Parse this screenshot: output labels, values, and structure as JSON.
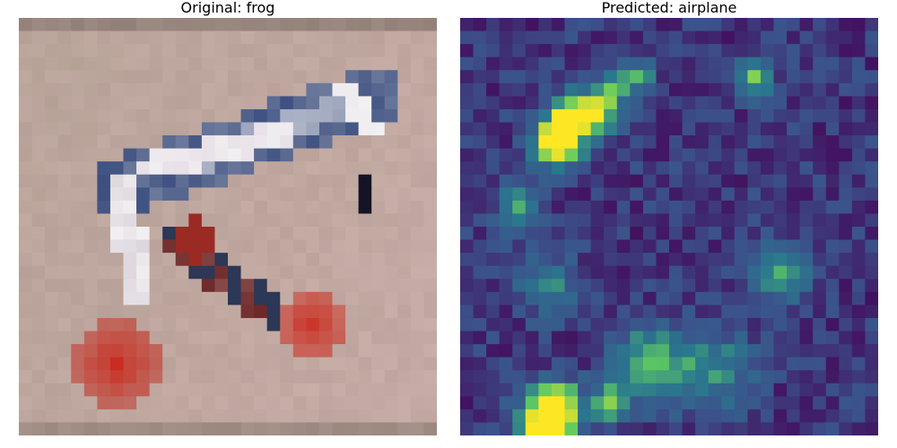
{
  "panels": [
    {
      "title": "Original: frog"
    },
    {
      "title": "Predicted: airplane"
    }
  ],
  "colors": {
    "original_background": "#b9a49a",
    "original_shadow_bands": "#8f7d75",
    "bird_red": "#c92b1f",
    "bird_white": "#f2f0f2",
    "bird_navy": "#3c4f7f",
    "heatmap_low": "#440154",
    "heatmap_mid": "#2a788e",
    "heatmap_high": "#fde725"
  }
}
